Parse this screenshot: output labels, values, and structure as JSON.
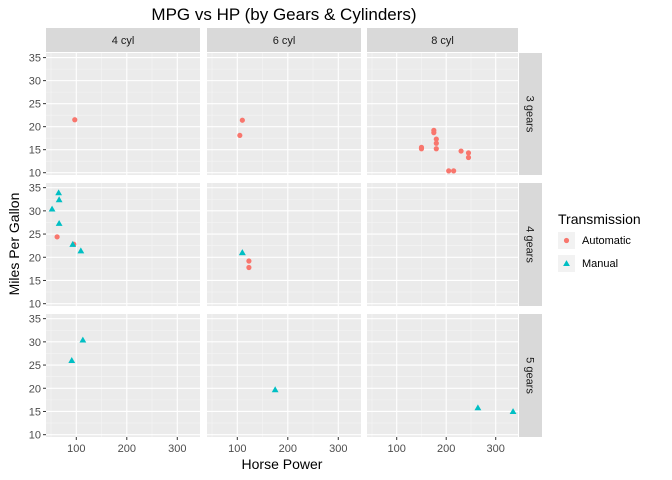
{
  "chart_data": {
    "type": "scatter",
    "title": "MPG vs HP (by Gears & Cylinders)",
    "xlabel": "Horse Power",
    "ylabel": "Miles Per Gallon",
    "xlim": [
      40,
      345
    ],
    "ylim": [
      9.5,
      36
    ],
    "x_ticks": [
      100,
      200,
      300
    ],
    "y_ticks": [
      10,
      15,
      20,
      25,
      30,
      35
    ],
    "grid": true,
    "col_facets": [
      "4 cyl",
      "6 cyl",
      "8 cyl"
    ],
    "row_facets": [
      "3 gears",
      "4 gears",
      "5 gears"
    ],
    "legend": {
      "title": "Transmission",
      "position": "right",
      "entries": [
        {
          "name": "Automatic",
          "shape": "circle",
          "color": "#F8766D"
        },
        {
          "name": "Manual",
          "shape": "triangle",
          "color": "#00BFC4"
        }
      ]
    },
    "series": [
      {
        "name": "Automatic",
        "color": "#F8766D",
        "shape": "circle",
        "points": [
          {
            "col": 0,
            "row": 0,
            "x": 97,
            "y": 21.5
          },
          {
            "col": 1,
            "row": 0,
            "x": 110,
            "y": 21.4
          },
          {
            "col": 1,
            "row": 0,
            "x": 105,
            "y": 18.1
          },
          {
            "col": 2,
            "row": 0,
            "x": 175,
            "y": 18.7
          },
          {
            "col": 2,
            "row": 0,
            "x": 245,
            "y": 14.3
          },
          {
            "col": 2,
            "row": 0,
            "x": 180,
            "y": 16.4
          },
          {
            "col": 2,
            "row": 0,
            "x": 180,
            "y": 17.3
          },
          {
            "col": 2,
            "row": 0,
            "x": 180,
            "y": 15.2
          },
          {
            "col": 2,
            "row": 0,
            "x": 205,
            "y": 10.4
          },
          {
            "col": 2,
            "row": 0,
            "x": 215,
            "y": 10.4
          },
          {
            "col": 2,
            "row": 0,
            "x": 230,
            "y": 14.7
          },
          {
            "col": 2,
            "row": 0,
            "x": 150,
            "y": 15.5
          },
          {
            "col": 2,
            "row": 0,
            "x": 150,
            "y": 15.2
          },
          {
            "col": 2,
            "row": 0,
            "x": 245,
            "y": 13.3
          },
          {
            "col": 2,
            "row": 0,
            "x": 175,
            "y": 19.2
          },
          {
            "col": 0,
            "row": 1,
            "x": 62,
            "y": 24.4
          },
          {
            "col": 0,
            "row": 1,
            "x": 95,
            "y": 22.8
          },
          {
            "col": 1,
            "row": 1,
            "x": 123,
            "y": 19.2
          },
          {
            "col": 1,
            "row": 1,
            "x": 123,
            "y": 17.8
          }
        ]
      },
      {
        "name": "Manual",
        "color": "#00BFC4",
        "shape": "triangle",
        "points": [
          {
            "col": 0,
            "row": 1,
            "x": 93,
            "y": 22.8
          },
          {
            "col": 0,
            "row": 1,
            "x": 66,
            "y": 32.4
          },
          {
            "col": 0,
            "row": 1,
            "x": 52,
            "y": 30.4
          },
          {
            "col": 0,
            "row": 1,
            "x": 65,
            "y": 33.9
          },
          {
            "col": 0,
            "row": 1,
            "x": 66,
            "y": 27.3
          },
          {
            "col": 0,
            "row": 1,
            "x": 109,
            "y": 21.4
          },
          {
            "col": 1,
            "row": 1,
            "x": 110,
            "y": 21.0
          },
          {
            "col": 1,
            "row": 1,
            "x": 110,
            "y": 21.0
          },
          {
            "col": 0,
            "row": 2,
            "x": 91,
            "y": 26.0
          },
          {
            "col": 0,
            "row": 2,
            "x": 113,
            "y": 30.4
          },
          {
            "col": 1,
            "row": 2,
            "x": 175,
            "y": 19.7
          },
          {
            "col": 2,
            "row": 2,
            "x": 264,
            "y": 15.8
          },
          {
            "col": 2,
            "row": 2,
            "x": 335,
            "y": 15.0
          }
        ]
      }
    ]
  }
}
